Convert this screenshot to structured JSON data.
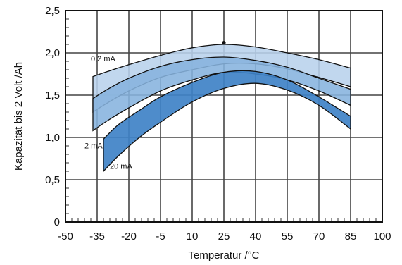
{
  "chart_data": {
    "type": "area",
    "title": "",
    "xlabel": "Temperatur /°C",
    "ylabel": "Kapazität bis 2 Volt /Ah",
    "xlim": [
      -50,
      100
    ],
    "ylim": [
      0,
      2.5
    ],
    "x_ticks": [
      -50,
      -35,
      -20,
      -5,
      10,
      25,
      40,
      55,
      70,
      85,
      100
    ],
    "x_tick_labels": [
      "-50",
      "-35",
      "-20",
      "-5",
      "10",
      "25",
      "40",
      "55",
      "70",
      "85",
      "100"
    ],
    "y_ticks": [
      0,
      0.5,
      1.0,
      1.5,
      2.0,
      2.5
    ],
    "y_tick_labels": [
      "0",
      "0,5",
      "1,0",
      "1,5",
      "2,0",
      "2,5"
    ],
    "grid": true,
    "colors": {
      "band_020mA": "#b8d2ec",
      "band_2mA": "#86b3de",
      "band_20mA": "#3f82c7",
      "outline": "#111111"
    },
    "series": [
      {
        "name": "0,2 mA",
        "x": [
          -37,
          -30,
          -20,
          -5,
          10,
          25,
          40,
          55,
          70,
          85
        ],
        "upper": [
          1.72,
          1.78,
          1.86,
          1.97,
          2.06,
          2.1,
          2.07,
          2.0,
          1.92,
          1.82
        ],
        "lower": [
          1.3,
          1.41,
          1.55,
          1.71,
          1.8,
          1.87,
          1.87,
          1.81,
          1.71,
          1.6
        ]
      },
      {
        "name": "2 mA",
        "x": [
          -37,
          -30,
          -20,
          -5,
          10,
          25,
          40,
          55,
          70,
          85
        ],
        "upper": [
          1.46,
          1.57,
          1.7,
          1.84,
          1.92,
          1.95,
          1.91,
          1.83,
          1.7,
          1.57
        ],
        "lower": [
          1.08,
          1.2,
          1.35,
          1.55,
          1.68,
          1.77,
          1.75,
          1.68,
          1.55,
          1.38
        ]
      },
      {
        "name": "20 mA",
        "x": [
          -32,
          -25,
          -15,
          -5,
          10,
          25,
          40,
          55,
          70,
          85
        ],
        "upper": [
          0.98,
          1.15,
          1.32,
          1.48,
          1.65,
          1.77,
          1.78,
          1.68,
          1.48,
          1.25
        ],
        "lower": [
          0.6,
          0.78,
          1.0,
          1.18,
          1.42,
          1.58,
          1.64,
          1.56,
          1.38,
          1.1
        ]
      }
    ],
    "annotations": [
      {
        "text": "0,2 mA",
        "x": -38,
        "y": 1.9
      },
      {
        "text": "2 mA",
        "x": -41,
        "y": 0.87
      },
      {
        "text": "20 mA",
        "x": -29,
        "y": 0.63
      }
    ],
    "marker": {
      "x": 25,
      "y": 2.12
    }
  }
}
